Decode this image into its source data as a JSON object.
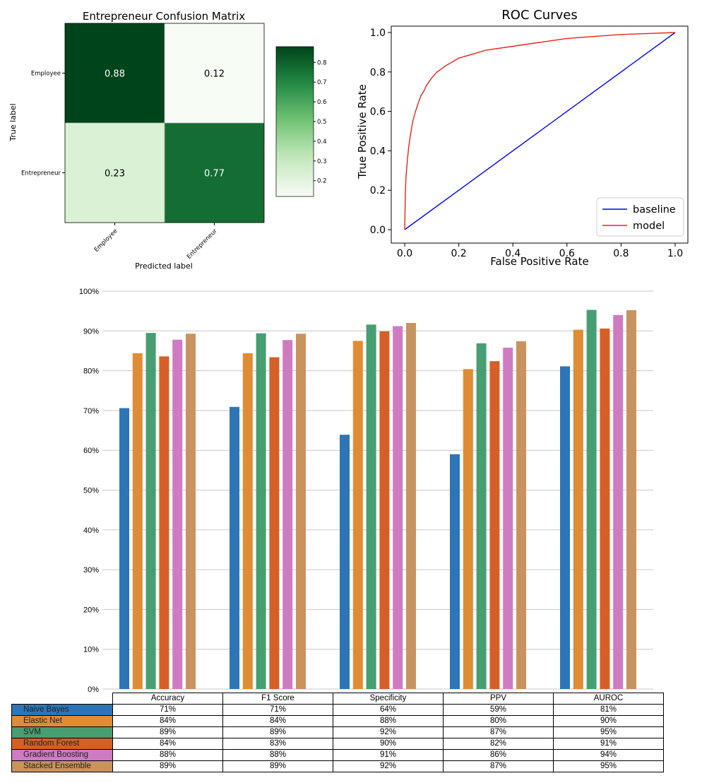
{
  "colors": {
    "naive_bayes": "#2e75b6",
    "elastic_net": "#e08c35",
    "svm": "#479e72",
    "random_forest": "#d65f28",
    "gradient_boosting": "#cf7bc2",
    "stacked_ensemble": "#c9935f",
    "roc_baseline": "#0000ff",
    "roc_model": "#e8251c"
  },
  "chart_data": [
    {
      "type": "heatmap",
      "title": "Entrepreneur Confusion Matrix",
      "xlabel": "Predicted label",
      "ylabel": "True label",
      "x_categories": [
        "Employee",
        "Entrepreneur"
      ],
      "y_categories": [
        "Employee",
        "Entrepreneur"
      ],
      "values": [
        [
          0.88,
          0.12
        ],
        [
          0.23,
          0.77
        ]
      ],
      "cell_labels": [
        [
          "0.88",
          "0.12"
        ],
        [
          "0.23",
          "0.77"
        ]
      ],
      "colorbar": {
        "min": 0.12,
        "max": 0.88,
        "ticks": [
          "0.2",
          "0.3",
          "0.4",
          "0.5",
          "0.6",
          "0.7",
          "0.8"
        ]
      }
    },
    {
      "type": "line",
      "title": "ROC Curves",
      "xlabel": "False Positive Rate",
      "ylabel": "True Positive Rate",
      "xlim": [
        0,
        1
      ],
      "ylim": [
        0,
        1
      ],
      "x_ticks": [
        "0.0",
        "0.2",
        "0.4",
        "0.6",
        "0.8",
        "1.0"
      ],
      "y_ticks": [
        "0.0",
        "0.2",
        "0.4",
        "0.6",
        "0.8",
        "1.0"
      ],
      "legend": "bottom-right",
      "series": [
        {
          "name": "baseline",
          "x": [
            0,
            1
          ],
          "y": [
            0,
            1
          ]
        },
        {
          "name": "model",
          "x": [
            0,
            0.003,
            0.005,
            0.01,
            0.015,
            0.02,
            0.03,
            0.04,
            0.05,
            0.06,
            0.07,
            0.08,
            0.1,
            0.12,
            0.15,
            0.2,
            0.25,
            0.3,
            0.4,
            0.5,
            0.6,
            0.7,
            0.8,
            0.9,
            1.0
          ],
          "y": [
            0,
            0.2,
            0.27,
            0.35,
            0.42,
            0.47,
            0.55,
            0.6,
            0.64,
            0.68,
            0.7,
            0.73,
            0.77,
            0.8,
            0.83,
            0.87,
            0.89,
            0.91,
            0.93,
            0.95,
            0.97,
            0.98,
            0.99,
            0.995,
            1.0
          ]
        }
      ]
    },
    {
      "type": "bar",
      "categories": [
        "Accuracy",
        "F1 Score",
        "Specificity",
        "PPV",
        "AUROC"
      ],
      "y_ticks": [
        "0%",
        "10%",
        "20%",
        "30%",
        "40%",
        "50%",
        "60%",
        "70%",
        "80%",
        "90%",
        "100%"
      ],
      "ylim": [
        0,
        100
      ],
      "series": [
        {
          "name": "Naive Bayes",
          "color_key": "naive_bayes",
          "values": [
            70.6,
            70.9,
            63.9,
            59.0,
            81.1
          ],
          "labels": [
            "71%",
            "71%",
            "64%",
            "59%",
            "81%"
          ]
        },
        {
          "name": "Elastic Net",
          "color_key": "elastic_net",
          "values": [
            84.4,
            84.4,
            87.5,
            80.4,
            90.3
          ],
          "labels": [
            "84%",
            "84%",
            "88%",
            "80%",
            "90%"
          ]
        },
        {
          "name": "SVM",
          "color_key": "svm",
          "values": [
            89.5,
            89.4,
            91.6,
            86.9,
            95.3
          ],
          "labels": [
            "89%",
            "89%",
            "92%",
            "87%",
            "95%"
          ]
        },
        {
          "name": "Random Forest",
          "color_key": "random_forest",
          "values": [
            83.6,
            83.4,
            89.9,
            82.4,
            90.6
          ],
          "labels": [
            "84%",
            "83%",
            "90%",
            "82%",
            "91%"
          ]
        },
        {
          "name": "Gradient Boosting",
          "color_key": "gradient_boosting",
          "values": [
            87.8,
            87.7,
            91.2,
            85.8,
            94.0
          ],
          "labels": [
            "88%",
            "88%",
            "91%",
            "86%",
            "94%"
          ]
        },
        {
          "name": "Stacked Ensemble",
          "color_key": "stacked_ensemble",
          "values": [
            89.3,
            89.3,
            92.0,
            87.4,
            95.2
          ],
          "labels": [
            "89%",
            "89%",
            "92%",
            "87%",
            "95%"
          ]
        }
      ]
    }
  ]
}
